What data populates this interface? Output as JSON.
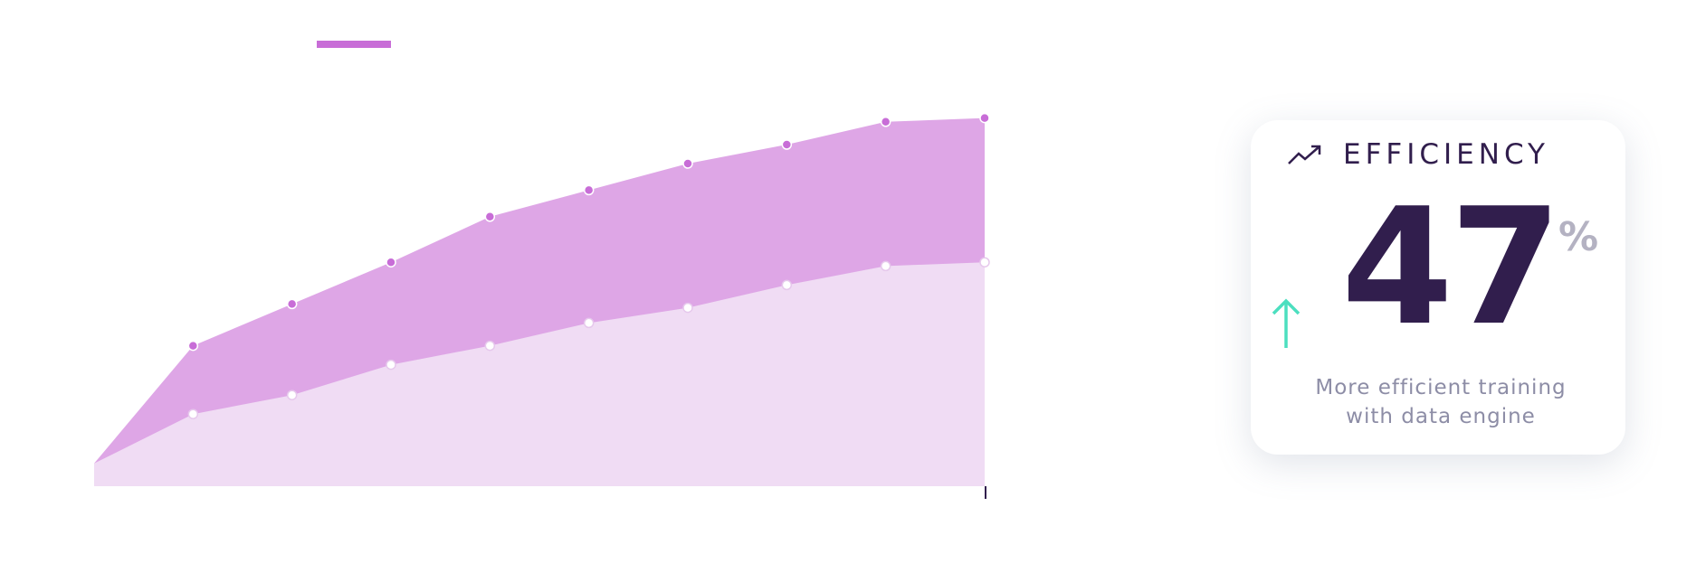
{
  "chart_data": {
    "type": "area",
    "categories": [
      null,
      null,
      null,
      null,
      null,
      null,
      null,
      null,
      null,
      null
    ],
    "series": [
      {
        "color": "#dea6e6",
        "marker_color": "#c86dd7",
        "values": [
          6,
          37,
          48,
          59,
          71,
          78,
          85,
          90,
          96,
          97
        ]
      },
      {
        "color": "#f0dcf4",
        "marker_color": "#ffffff",
        "values": [
          6,
          19,
          24,
          32,
          37,
          43,
          47,
          53,
          58,
          59
        ]
      }
    ],
    "ylim": [
      0,
      100
    ]
  },
  "card": {
    "title": "EFFICIENCY",
    "value": "47",
    "unit": "%",
    "description_lines": [
      "More efficient training",
      "with data engine"
    ]
  }
}
